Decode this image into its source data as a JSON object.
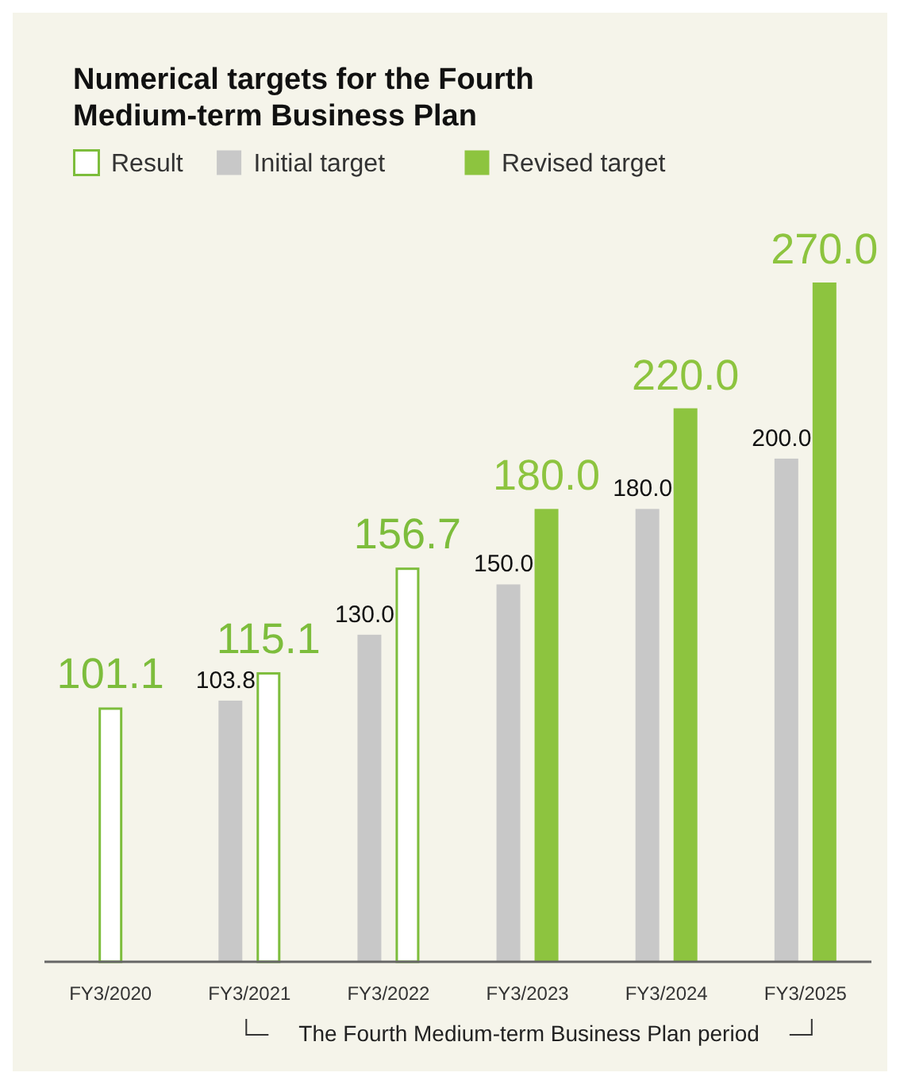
{
  "chart_data": {
    "type": "bar",
    "title": "Numerical targets for the Fourth Medium-term Business Plan",
    "categories": [
      "FY3/2020",
      "FY3/2021",
      "FY3/2022",
      "FY3/2023",
      "FY3/2024",
      "FY3/2025"
    ],
    "series": [
      {
        "name": "Result",
        "color": "#7dbd3c",
        "values": [
          101.1,
          115.1,
          156.7,
          null,
          null,
          null
        ],
        "value_labels": [
          "101.1",
          "115.1",
          "156.7",
          null,
          null,
          null
        ]
      },
      {
        "name": "Initial target",
        "color": "#c8c8c8",
        "values": [
          null,
          103.8,
          130.0,
          150.0,
          180.0,
          200.0
        ],
        "value_labels": [
          null,
          "103.8",
          "130.0",
          "150.0",
          "180.0",
          "200.0"
        ]
      },
      {
        "name": "Revised target",
        "color": "#8dc43f",
        "values": [
          null,
          null,
          null,
          180.0,
          220.0,
          270.0
        ],
        "value_labels": [
          null,
          null,
          null,
          "180.0",
          "220.0",
          "270.0"
        ]
      }
    ],
    "legend": "top left",
    "annotations": [
      "The Fourth Medium-term Business Plan period"
    ]
  }
}
